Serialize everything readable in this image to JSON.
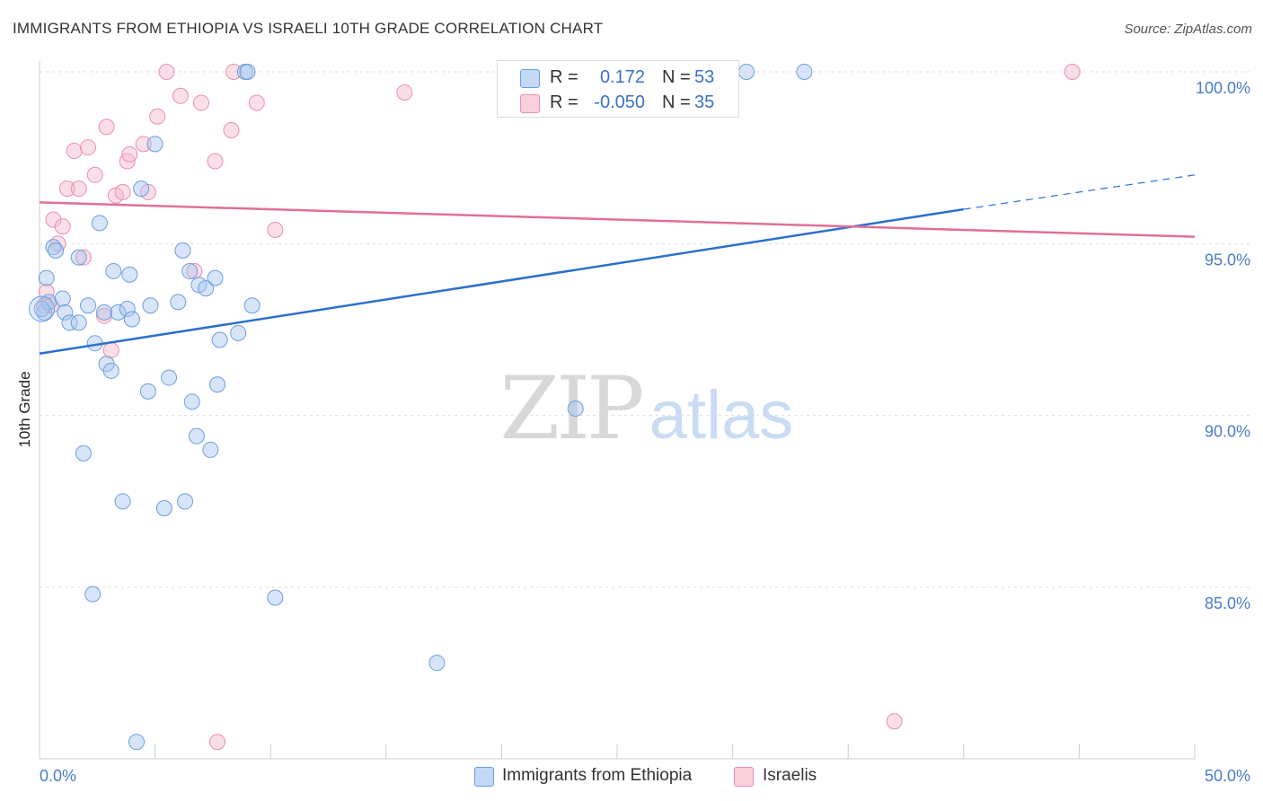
{
  "title": "IMMIGRANTS FROM ETHIOPIA VS ISRAELI 10TH GRADE CORRELATION CHART",
  "source": "Source: ZipAtlas.com",
  "watermark": {
    "zip": "ZIP",
    "atlas": "atlas"
  },
  "legend": {
    "rows": [
      {
        "r_label": "R =",
        "r_value": "0.172",
        "n_label": "N =",
        "n_value": "53",
        "color": "#a9c6f0"
      },
      {
        "r_label": "R =",
        "r_value": "-0.050",
        "n_label": "N =",
        "n_value": "35",
        "color": "#f7b9cb"
      }
    ]
  },
  "bottom_legend": [
    {
      "label": "Immigrants from Ethiopia",
      "color": "#a9c6f0"
    },
    {
      "label": "Israelis",
      "color": "#f7b9cb"
    }
  ],
  "chart_data": {
    "type": "scatter",
    "title": "IMMIGRANTS FROM ETHIOPIA VS ISRAELI 10TH GRADE CORRELATION CHART",
    "xlabel": "",
    "ylabel": "10th Grade",
    "xlim": [
      0,
      50
    ],
    "ylim": [
      80.5,
      100.5
    ],
    "x_tick_labels": [
      "0.0%",
      "50.0%"
    ],
    "y_ticks": [
      {
        "value": 100,
        "label": "100.0%"
      },
      {
        "value": 95,
        "label": "95.0%"
      },
      {
        "value": 90,
        "label": "90.0%"
      },
      {
        "value": 85,
        "label": "85.0%"
      }
    ],
    "series": [
      {
        "name": "Immigrants from Ethiopia",
        "color": "#6b9ee0",
        "fill": "#a9c6f0",
        "line_color": "#2c6fcf",
        "trend": {
          "x0": 0,
          "y0": 91.8,
          "x1": 40,
          "y1": 96.0,
          "dash_x1": 50,
          "dash_y1": 97.0
        },
        "points": [
          [
            0.2,
            93.0
          ],
          [
            0.3,
            94.0
          ],
          [
            0.4,
            93.3
          ],
          [
            0.6,
            94.9
          ],
          [
            0.7,
            94.8
          ],
          [
            1.0,
            93.4
          ],
          [
            1.1,
            93.0
          ],
          [
            1.3,
            92.7
          ],
          [
            1.7,
            92.7
          ],
          [
            1.7,
            94.6
          ],
          [
            1.9,
            88.9
          ],
          [
            2.1,
            93.2
          ],
          [
            2.3,
            84.8
          ],
          [
            2.4,
            92.1
          ],
          [
            2.6,
            95.6
          ],
          [
            2.8,
            93.0
          ],
          [
            2.9,
            91.5
          ],
          [
            3.1,
            91.3
          ],
          [
            3.2,
            94.2
          ],
          [
            3.4,
            93.0
          ],
          [
            3.6,
            87.5
          ],
          [
            3.8,
            93.1
          ],
          [
            3.9,
            94.1
          ],
          [
            4.0,
            92.8
          ],
          [
            4.2,
            80.5
          ],
          [
            4.4,
            96.6
          ],
          [
            4.7,
            90.7
          ],
          [
            4.8,
            93.2
          ],
          [
            5.0,
            97.9
          ],
          [
            5.4,
            87.3
          ],
          [
            5.6,
            91.1
          ],
          [
            6.0,
            93.3
          ],
          [
            6.2,
            94.8
          ],
          [
            6.3,
            87.5
          ],
          [
            6.5,
            94.2
          ],
          [
            6.6,
            90.4
          ],
          [
            6.8,
            89.4
          ],
          [
            6.9,
            93.8
          ],
          [
            7.2,
            93.7
          ],
          [
            7.4,
            89.0
          ],
          [
            7.6,
            94.0
          ],
          [
            7.7,
            90.9
          ],
          [
            7.8,
            92.2
          ],
          [
            8.6,
            92.4
          ],
          [
            8.9,
            100.0
          ],
          [
            9.0,
            100.0
          ],
          [
            9.2,
            93.2
          ],
          [
            10.2,
            84.7
          ],
          [
            17.2,
            82.8
          ],
          [
            23.2,
            90.2
          ],
          [
            30.6,
            100.0
          ],
          [
            33.1,
            100.0
          ],
          [
            0.1,
            93.1
          ]
        ]
      },
      {
        "name": "Israelis",
        "color": "#e98fad",
        "fill": "#f7b9cb",
        "line_color": "#e07099",
        "trend": {
          "x0": 0,
          "y0": 96.2,
          "x1": 50,
          "y1": 95.2
        },
        "points": [
          [
            0.2,
            93.2
          ],
          [
            0.3,
            93.6
          ],
          [
            0.5,
            93.2
          ],
          [
            0.6,
            95.7
          ],
          [
            0.8,
            95.0
          ],
          [
            1.0,
            95.5
          ],
          [
            1.2,
            96.6
          ],
          [
            1.5,
            97.7
          ],
          [
            1.7,
            96.6
          ],
          [
            1.9,
            94.6
          ],
          [
            2.1,
            97.8
          ],
          [
            2.4,
            97.0
          ],
          [
            2.8,
            92.9
          ],
          [
            2.9,
            98.4
          ],
          [
            3.1,
            91.9
          ],
          [
            3.3,
            96.4
          ],
          [
            3.6,
            96.5
          ],
          [
            3.8,
            97.4
          ],
          [
            3.9,
            97.6
          ],
          [
            4.5,
            97.9
          ],
          [
            4.7,
            96.5
          ],
          [
            5.1,
            98.7
          ],
          [
            5.5,
            100.0
          ],
          [
            6.1,
            99.3
          ],
          [
            6.7,
            94.2
          ],
          [
            7.0,
            99.1
          ],
          [
            7.6,
            97.4
          ],
          [
            7.7,
            80.5
          ],
          [
            8.3,
            98.3
          ],
          [
            8.4,
            100.0
          ],
          [
            9.4,
            99.1
          ],
          [
            10.2,
            95.4
          ],
          [
            15.8,
            99.4
          ],
          [
            37.0,
            81.1
          ],
          [
            44.7,
            100.0
          ]
        ]
      }
    ]
  }
}
